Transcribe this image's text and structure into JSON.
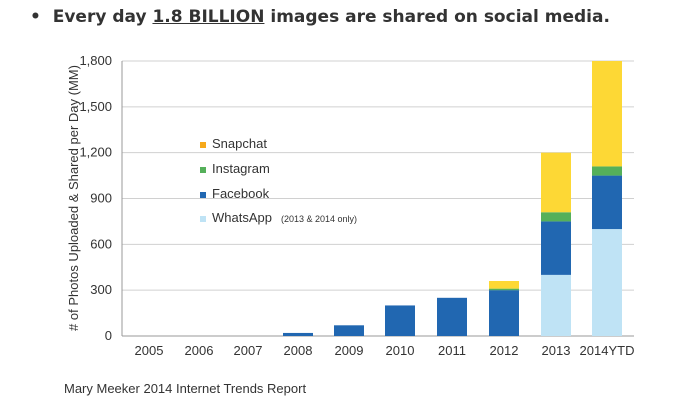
{
  "headline": {
    "bullet": "•",
    "prefix": "Every day ",
    "highlight": "1.8 BILLION",
    "suffix": " images are shared on social media."
  },
  "source": "Mary Meeker 2014 Internet Trends Report",
  "colors": {
    "snapchat": "#fdd835",
    "snapchat_legend": "#f6a91c",
    "instagram": "#55b05a",
    "facebook": "#2167b1",
    "whatsapp": "#bfe3f5",
    "grid": "#d0d0d0",
    "axis": "#999999"
  },
  "chart_data": {
    "type": "bar",
    "stacked": true,
    "ylabel": "# of Photos Uploaded & Shared per Day (MM)",
    "ylim": [
      0,
      1800
    ],
    "yticks": [
      0,
      300,
      600,
      900,
      1200,
      1500,
      1800
    ],
    "ytick_labels": [
      "0",
      "300",
      "600",
      "900",
      "1,200",
      "1,500",
      "1,800"
    ],
    "categories": [
      "2005",
      "2006",
      "2007",
      "2008",
      "2009",
      "2010",
      "2011",
      "2012",
      "2013",
      "2014YTD"
    ],
    "grid": true,
    "legend": "upper-left",
    "series": [
      {
        "name": "WhatsApp",
        "note": "(2013 & 2014 only)",
        "color_key": "whatsapp",
        "values": [
          0,
          0,
          0,
          0,
          0,
          0,
          0,
          0,
          400,
          700
        ]
      },
      {
        "name": "Facebook",
        "color_key": "facebook",
        "values": [
          0,
          0,
          0,
          20,
          70,
          200,
          250,
          300,
          350,
          350
        ]
      },
      {
        "name": "Instagram",
        "color_key": "instagram",
        "values": [
          0,
          0,
          0,
          0,
          0,
          0,
          0,
          10,
          60,
          60
        ]
      },
      {
        "name": "Snapchat",
        "color_key": "snapchat",
        "values": [
          0,
          0,
          0,
          0,
          0,
          0,
          0,
          50,
          390,
          690
        ]
      }
    ],
    "legend_order": [
      "Snapchat",
      "Instagram",
      "Facebook",
      "WhatsApp"
    ]
  }
}
